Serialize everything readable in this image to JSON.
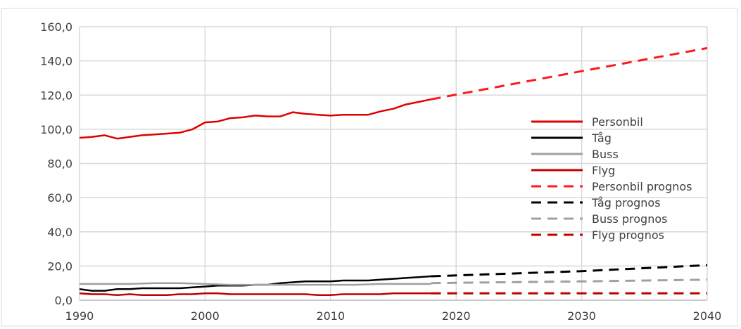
{
  "chart_data": {
    "type": "line",
    "title": "",
    "xlabel": "",
    "ylabel": "",
    "xlim": [
      1990,
      2040
    ],
    "ylim": [
      0,
      160
    ],
    "x_ticks": [
      1990,
      2000,
      2010,
      2020,
      2030,
      2040
    ],
    "y_ticks": [
      0,
      20,
      40,
      60,
      80,
      100,
      120,
      140,
      160
    ],
    "x_tick_labels": [
      "1990",
      "2000",
      "2010",
      "2020",
      "2030",
      "2040"
    ],
    "y_tick_labels": [
      "0,0",
      "20,0",
      "40,0",
      "60,0",
      "80,0",
      "100,0",
      "120,0",
      "140,0",
      "160,0"
    ],
    "grid": true,
    "legend_position": "right",
    "series": [
      {
        "name": "Personbil",
        "color": "#e00000",
        "dashed": false,
        "x": [
          1990,
          1991,
          1992,
          1993,
          1994,
          1995,
          1996,
          1997,
          1998,
          1999,
          2000,
          2001,
          2002,
          2003,
          2004,
          2005,
          2006,
          2007,
          2008,
          2009,
          2010,
          2011,
          2012,
          2013,
          2014,
          2015,
          2016,
          2017,
          2018
        ],
        "y": [
          95,
          95.5,
          96.5,
          94.5,
          95.5,
          96.5,
          97,
          97.5,
          98,
          100,
          104,
          104.5,
          106.5,
          107,
          108,
          107.5,
          107.5,
          110,
          109,
          108.5,
          108,
          108.5,
          108.5,
          108.5,
          110.5,
          112,
          114.5,
          116,
          117.5
        ]
      },
      {
        "name": "Tåg",
        "color": "#000000",
        "dashed": false,
        "x": [
          1990,
          1991,
          1992,
          1993,
          1994,
          1995,
          1996,
          1997,
          1998,
          1999,
          2000,
          2001,
          2002,
          2003,
          2004,
          2005,
          2006,
          2007,
          2008,
          2009,
          2010,
          2011,
          2012,
          2013,
          2014,
          2015,
          2016,
          2017,
          2018
        ],
        "y": [
          6.5,
          5.5,
          5.5,
          6.5,
          6.5,
          7,
          7,
          7,
          7,
          7.5,
          8,
          8.5,
          8.5,
          8.5,
          9,
          9,
          10,
          10.5,
          11,
          11,
          11,
          11.5,
          11.5,
          11.5,
          12,
          12.5,
          13,
          13.5,
          14
        ]
      },
      {
        "name": "Buss",
        "color": "#a0a0a0",
        "dashed": false,
        "x": [
          1990,
          1992,
          1994,
          1996,
          1998,
          2000,
          2002,
          2004,
          2006,
          2008,
          2010,
          2012,
          2014,
          2016,
          2018
        ],
        "y": [
          9.5,
          9.5,
          9.5,
          10,
          10,
          9.5,
          9,
          9,
          9,
          9,
          9,
          9,
          9.5,
          9.5,
          9.5
        ]
      },
      {
        "name": "Flyg",
        "color": "#c00000",
        "dashed": false,
        "x": [
          1990,
          1991,
          1992,
          1993,
          1994,
          1995,
          1996,
          1997,
          1998,
          1999,
          2000,
          2001,
          2002,
          2003,
          2004,
          2005,
          2006,
          2007,
          2008,
          2009,
          2010,
          2011,
          2012,
          2013,
          2014,
          2015,
          2016,
          2017,
          2018
        ],
        "y": [
          4,
          3.5,
          3.5,
          3,
          3.5,
          3,
          3,
          3,
          3.5,
          3.5,
          4,
          4,
          3.5,
          3.5,
          3.5,
          3.5,
          3.5,
          3.5,
          3.5,
          3,
          3,
          3.5,
          3.5,
          3.5,
          3.5,
          4,
          4,
          4,
          4
        ]
      },
      {
        "name": "Personbil prognos",
        "color": "#ff1a1a",
        "dashed": true,
        "x": [
          2018,
          2030,
          2040
        ],
        "y": [
          117.5,
          134,
          147.5
        ]
      },
      {
        "name": "Tåg prognos",
        "color": "#000000",
        "dashed": true,
        "x": [
          2018,
          2030,
          2040
        ],
        "y": [
          14,
          17,
          20.5
        ]
      },
      {
        "name": "Buss prognos",
        "color": "#a0a0a0",
        "dashed": true,
        "x": [
          2018,
          2030,
          2040
        ],
        "y": [
          10,
          11,
          12
        ]
      },
      {
        "name": "Flyg prognos",
        "color": "#c00000",
        "dashed": true,
        "x": [
          2018,
          2030,
          2040
        ],
        "y": [
          4,
          4,
          4
        ]
      }
    ]
  }
}
